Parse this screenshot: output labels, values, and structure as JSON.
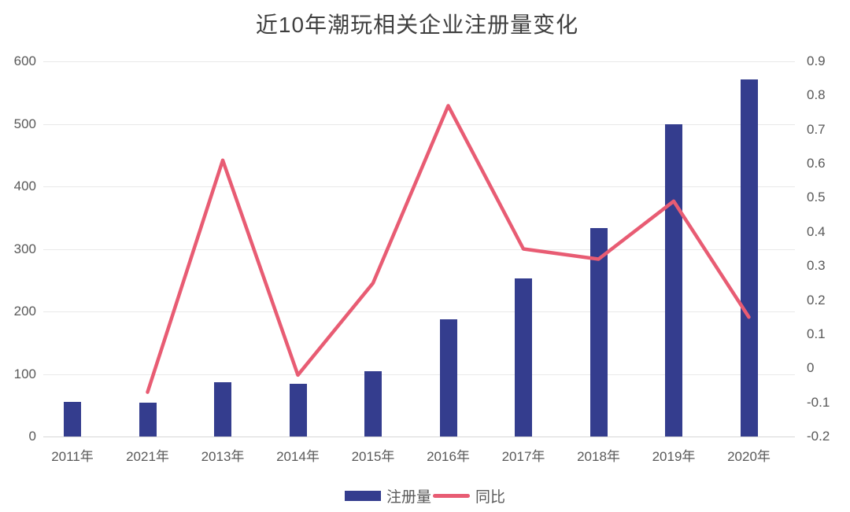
{
  "chart_data": {
    "type": "combo-bar-line",
    "title": "近10年潮玩相关企业注册量变化",
    "categories": [
      "2011年",
      "2021年",
      "2013年",
      "2014年",
      "2015年",
      "2016年",
      "2017年",
      "2018年",
      "2019年",
      "2020年"
    ],
    "series": [
      {
        "name": "注册量",
        "type": "bar",
        "axis": "left",
        "color": "#343d8e",
        "values": [
          55,
          54,
          87,
          84,
          105,
          188,
          253,
          333,
          499,
          571
        ]
      },
      {
        "name": "同比",
        "type": "line",
        "axis": "right",
        "color": "#e85c73",
        "values": [
          null,
          -0.07,
          0.61,
          -0.02,
          0.25,
          0.77,
          0.35,
          0.32,
          0.49,
          0.15
        ]
      }
    ],
    "left_axis": {
      "min": 0,
      "max": 600,
      "step": 100,
      "ticks": [
        "600",
        "500",
        "400",
        "300",
        "200",
        "100",
        "0"
      ]
    },
    "right_axis": {
      "min": -0.2,
      "max": 0.9,
      "step": 0.1,
      "ticks": [
        "0.9",
        "0.8",
        "0.7",
        "0.6",
        "0.5",
        "0.4",
        "0.3",
        "0.2",
        "0.1",
        "0",
        "-0.1",
        "-0.2"
      ]
    },
    "grid": true,
    "legend_position": "bottom",
    "legend": [
      {
        "label": "注册量",
        "marker": "bar",
        "color": "#343d8e"
      },
      {
        "label": "同比",
        "marker": "line",
        "color": "#e85c73"
      }
    ],
    "colors": {
      "bar": "#343d8e",
      "line": "#e85c73",
      "gridline": "#e9e9e9",
      "axis_line": "#d7d7d7",
      "tick_text": "#595959",
      "title_text": "#3f3f3f",
      "background": "#ffffff"
    }
  }
}
